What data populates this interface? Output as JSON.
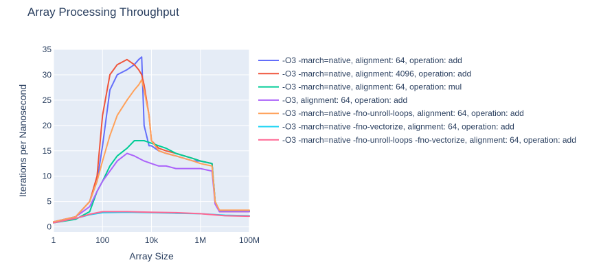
{
  "chart_data": {
    "type": "line",
    "title": "Array Processing Throughput",
    "xlabel": "Array Size",
    "ylabel": "Iterations per Nanosecond",
    "xscale": "log",
    "xlim": [
      1,
      100000000
    ],
    "ylim": [
      -1,
      35
    ],
    "x_ticks": [
      1,
      100,
      10000,
      1000000,
      100000000
    ],
    "x_tick_labels": [
      "1",
      "100",
      "10k",
      "1M",
      "100M"
    ],
    "y_ticks": [
      0,
      5,
      10,
      15,
      20,
      25,
      30,
      35
    ],
    "y_tick_labels": [
      "0",
      "5",
      "10",
      "15",
      "20",
      "25",
      "30",
      "35"
    ],
    "legend_position": "right",
    "series": [
      {
        "name": "-O3 -march=native, alignment: 64, operation: add",
        "color": "#636efa",
        "x": [
          1,
          8,
          30,
          60,
          100,
          200,
          400,
          1000,
          2000,
          3000,
          4000,
          5000,
          8000,
          10000,
          20000,
          40000,
          100000,
          500000,
          1000000,
          3000000,
          4000000,
          6000000,
          10000000,
          100000000
        ],
        "y": [
          1,
          2,
          5,
          9,
          16,
          27,
          30,
          31,
          32,
          33,
          33.5,
          20,
          16,
          16,
          15,
          14.5,
          14,
          13,
          13,
          12.5,
          5,
          3,
          3,
          3
        ]
      },
      {
        "name": "-O3 -march=native, alignment: 4096, operation: add",
        "color": "#ef553b",
        "x": [
          1,
          8,
          30,
          60,
          100,
          200,
          400,
          1000,
          2000,
          3000,
          4000,
          5000,
          8000,
          10000,
          20000,
          40000,
          100000,
          500000,
          1000000,
          3000000,
          4000000,
          6000000,
          10000000,
          100000000
        ],
        "y": [
          1,
          2,
          5,
          10,
          22,
          30,
          32,
          33,
          32,
          31,
          30,
          28,
          22,
          17,
          15.5,
          15,
          14.5,
          13.5,
          13,
          12.5,
          5,
          3,
          3,
          3
        ]
      },
      {
        "name": "-O3 -march=native, alignment: 64, operation: mul",
        "color": "#00cc96",
        "x": [
          1,
          8,
          30,
          60,
          100,
          200,
          400,
          1000,
          2000,
          5000,
          10000,
          20000,
          40000,
          100000,
          500000,
          1000000,
          3000000,
          4000000,
          6000000,
          10000000,
          100000000
        ],
        "y": [
          0.8,
          1.5,
          3,
          7,
          9,
          12,
          14,
          15.5,
          17,
          17,
          16.5,
          16,
          15.5,
          14.5,
          13.5,
          13,
          12.5,
          5,
          3.2,
          3.2,
          3.2
        ]
      },
      {
        "name": "-O3, alignment: 64, operation: add",
        "color": "#ab63fa",
        "x": [
          1,
          8,
          30,
          60,
          100,
          200,
          400,
          1000,
          2000,
          5000,
          10000,
          20000,
          40000,
          100000,
          500000,
          1000000,
          3000000,
          4000000,
          6000000,
          10000000,
          100000000
        ],
        "y": [
          1,
          2,
          4,
          7,
          9,
          11,
          13,
          14.5,
          14,
          13,
          12.5,
          12,
          12,
          11.5,
          11.5,
          11.5,
          11,
          4.5,
          3,
          3,
          3
        ]
      },
      {
        "name": "-O3 -march=native -fno-unroll-loops, alignment: 64, operation: add",
        "color": "#ffa15a",
        "x": [
          1,
          8,
          30,
          60,
          100,
          200,
          400,
          1000,
          2000,
          3000,
          4000,
          5000,
          8000,
          10000,
          20000,
          40000,
          100000,
          500000,
          1000000,
          3000000,
          4000000,
          6000000,
          10000000,
          100000000
        ],
        "y": [
          1,
          2,
          5,
          9,
          13,
          18,
          22,
          25,
          27,
          28,
          29,
          27,
          22,
          17,
          15,
          14.5,
          14,
          13,
          12.5,
          12,
          5,
          3.3,
          3.3,
          3.3
        ]
      },
      {
        "name": "-O3 -march=native -fno-vectorize, alignment: 64, operation: add",
        "color": "#19d3f3",
        "x": [
          1,
          10,
          30,
          100,
          1000,
          10000,
          100000,
          1000000,
          10000000,
          100000000
        ],
        "y": [
          0.8,
          1.8,
          2.4,
          2.8,
          2.9,
          2.8,
          2.7,
          2.6,
          2.3,
          2.2
        ]
      },
      {
        "name": "-O3 -march=native -fno-unroll-loops -fno-vectorize, alignment: 64, operation: add",
        "color": "#ff6692",
        "x": [
          1,
          10,
          30,
          100,
          1000,
          10000,
          100000,
          1000000,
          10000000,
          100000000
        ],
        "y": [
          0.8,
          1.8,
          2.5,
          3,
          3,
          2.9,
          2.8,
          2.6,
          2.2,
          2.1
        ]
      }
    ]
  }
}
